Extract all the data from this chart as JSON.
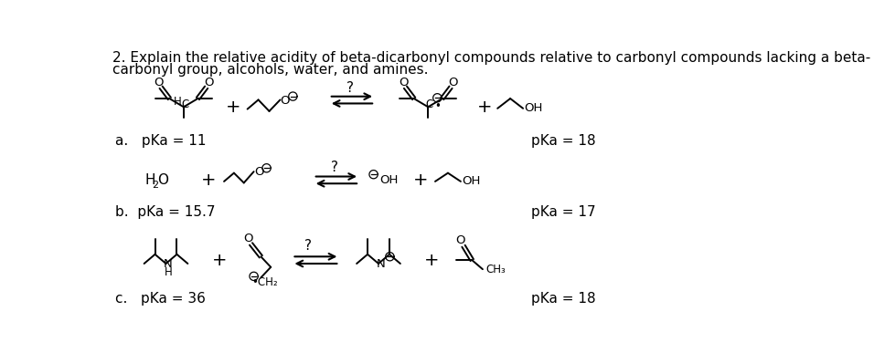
{
  "title_line1": "2. Explain the relative acidity of beta-dicarbonyl compounds relative to carbonyl compounds lacking a beta-",
  "title_line2": "carbonyl group, alcohols, water, and amines.",
  "bg_color": "#ffffff",
  "text_color": "#000000",
  "row_a": {
    "pka_left": "pKa = 11",
    "pka_right": "pKa = 18"
  },
  "row_b": {
    "pka_left": "pKa = 15.7",
    "pka_right": "pKa = 17"
  },
  "row_c": {
    "pka_left": "pKa = 36",
    "pka_right": "pKa = 18"
  }
}
